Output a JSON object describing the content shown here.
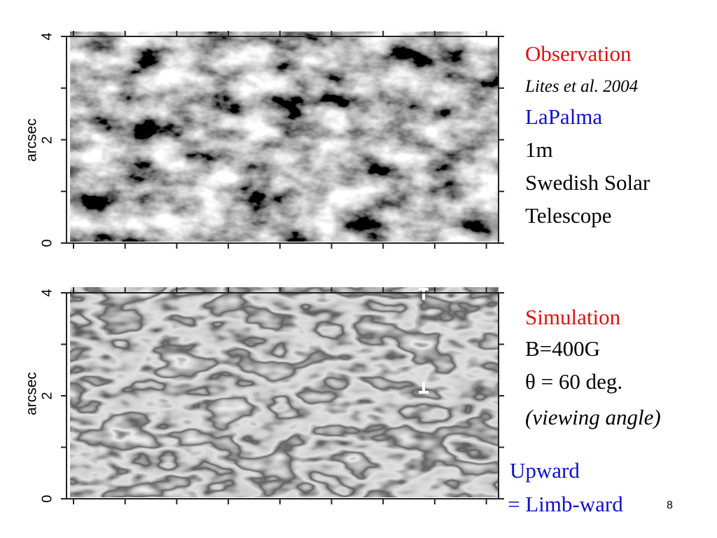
{
  "panels": [
    {
      "y_axis_label": "arcsec",
      "y_ticks": [
        "0",
        "2",
        "4"
      ]
    },
    {
      "y_axis_label": "arcsec",
      "y_ticks": [
        "0",
        "2",
        "4"
      ]
    }
  ],
  "observation": {
    "heading": "Observation",
    "reference": "Lites et al. 2004",
    "site": "LaPalma",
    "lines": [
      "1m",
      "Swedish Solar",
      "Telescope"
    ]
  },
  "simulation": {
    "heading": "Simulation",
    "field": "B=400G",
    "angle": "θ = 60 deg.",
    "angle_note": "(viewing angle)"
  },
  "note": {
    "lines": [
      "Upward",
      "= Limb-ward"
    ]
  },
  "page_number": "8"
}
